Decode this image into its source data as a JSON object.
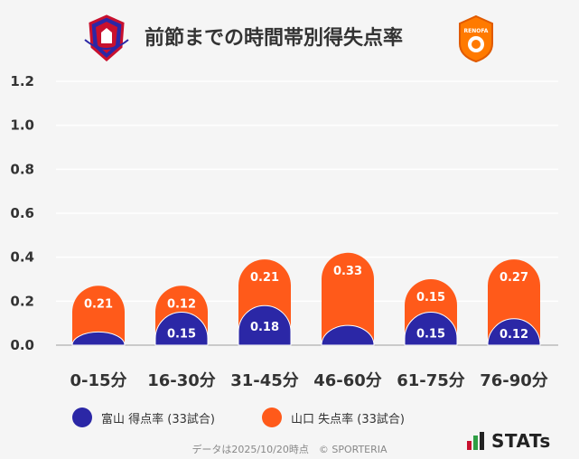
{
  "title": "前節までの時間帯別得失点率",
  "chart_data": {
    "type": "bar",
    "stacked": true,
    "title": "前節までの時間帯別得失点率",
    "categories": [
      "0-15分",
      "16-30分",
      "31-45分",
      "46-60分",
      "61-75分",
      "76-90分"
    ],
    "series": [
      {
        "name": "富山 得点率 (33試合)",
        "color": "#2b27a6",
        "values": [
          0.06,
          0.15,
          0.18,
          0.09,
          0.15,
          0.12
        ],
        "labels": [
          "",
          "0.15",
          "0.18",
          "",
          "0.15",
          "0.12"
        ]
      },
      {
        "name": "山口 失点率 (33試合)",
        "color": "#ff5a1a",
        "values": [
          0.21,
          0.12,
          0.21,
          0.33,
          0.15,
          0.27
        ],
        "labels": [
          "0.21",
          "0.12",
          "0.21",
          "0.33",
          "0.15",
          "0.27"
        ]
      }
    ],
    "ylim": [
      0,
      1.2
    ],
    "yticks": [
      "0.0",
      "0.2",
      "0.4",
      "0.6",
      "0.8",
      "1.0",
      "1.2"
    ],
    "xlabel": "",
    "ylabel": "",
    "grid": true,
    "legend": "bottom"
  },
  "legend": {
    "home": {
      "label": "富山 得点率 (33試合)",
      "color": "#2b27a6"
    },
    "away": {
      "label": "山口 失点率 (33試合)",
      "color": "#ff5a1a"
    }
  },
  "footer": "データは2025/10/20時点　© SPORTERIA",
  "logos": {
    "home_crest": "富山 crest-icon",
    "away_crest": "RENOFA crest-icon",
    "away_crest_text": "RENOFA",
    "brand_text": "STATs"
  }
}
